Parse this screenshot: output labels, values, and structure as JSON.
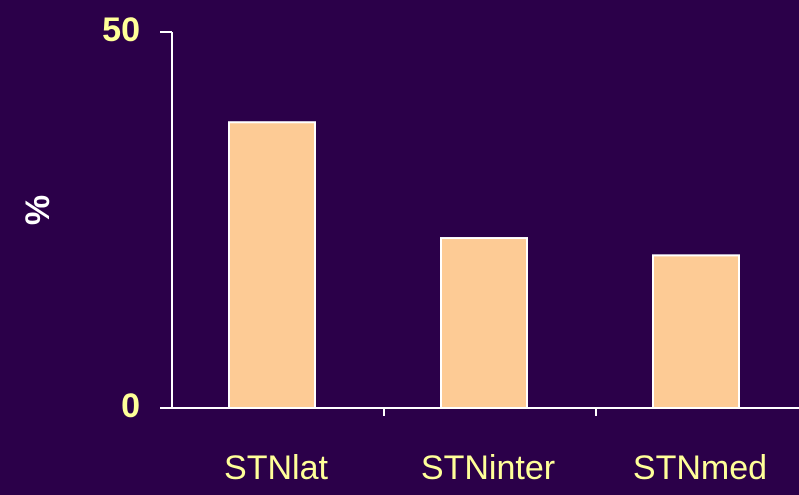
{
  "chart_data": {
    "type": "bar",
    "y_label": "%",
    "categories": [
      "STNlat",
      "STNinter",
      "STNmed"
    ],
    "values": [
      38,
      22.6,
      20.3
    ],
    "color": "#fdcb95",
    "ylim": [
      0,
      50
    ],
    "yticks": [
      0,
      50
    ],
    "grid": false
  }
}
